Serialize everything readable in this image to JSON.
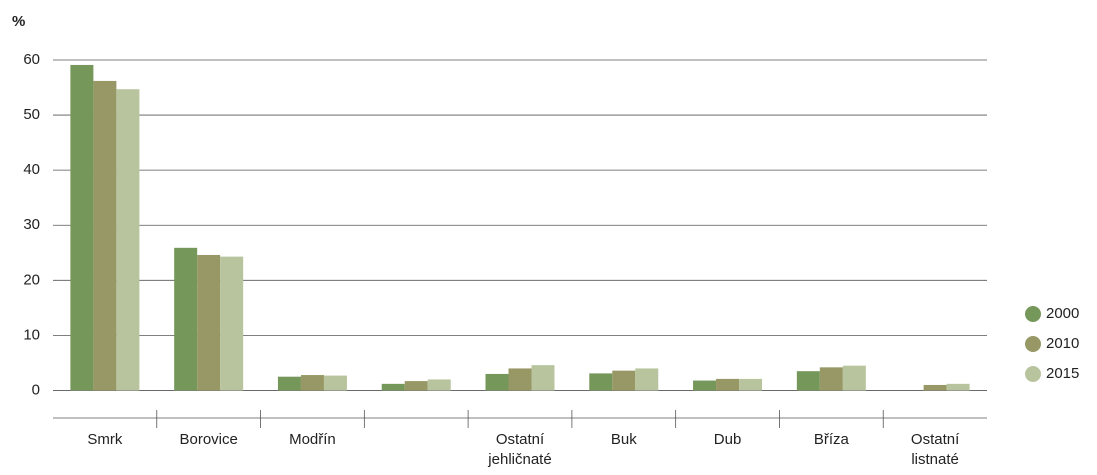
{
  "chart_data": {
    "type": "bar",
    "y_label": "%",
    "categories": [
      "Smrk",
      "Borovice",
      "Modřín",
      null,
      "Ostatní jehličnaté",
      "Buk",
      "Dub",
      "Bříza",
      "Ostatní listnaté"
    ],
    "series": [
      {
        "name": "2000",
        "color": "#76975a",
        "values": [
          59.1,
          25.9,
          2.5,
          1.2,
          3.0,
          3.1,
          1.8,
          3.5,
          null
        ]
      },
      {
        "name": "2010",
        "color": "#979865",
        "values": [
          56.2,
          24.6,
          2.8,
          1.7,
          4.0,
          3.6,
          2.1,
          4.2,
          1.0
        ]
      },
      {
        "name": "2015",
        "color": "#b8c49d",
        "values": [
          54.7,
          24.3,
          2.7,
          2.0,
          4.6,
          4.0,
          2.1,
          4.5,
          1.2
        ]
      }
    ],
    "ylim": [
      -5,
      60
    ],
    "yticks": [
      0,
      10,
      20,
      30,
      40,
      50,
      60
    ],
    "grid": true,
    "legend": "right"
  }
}
